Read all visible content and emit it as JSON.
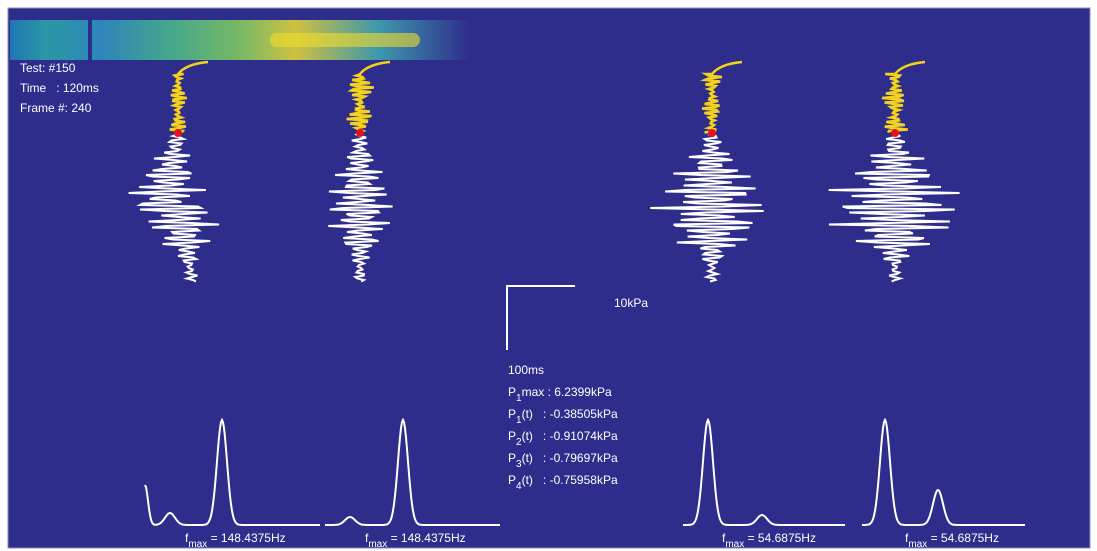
{
  "info": [
    "Test: #150",
    "Time   : 120ms",
    "Frame #: 240"
  ],
  "scale": {
    "pressure": "10kPa",
    "time": "100ms"
  },
  "readouts": [
    {
      "symbol": "P",
      "subscript": "1",
      "rest": "max : 6.2399kPa"
    },
    {
      "symbol": "P",
      "subscript": "1",
      "rest": "(t)   : -0.38505kPa"
    },
    {
      "symbol": "P",
      "subscript": "2",
      "rest": "(t)   : -0.91074kPa"
    },
    {
      "symbol": "P",
      "subscript": "3",
      "rest": "(t)   : -0.79697kPa"
    },
    {
      "symbol": "P",
      "subscript": "4",
      "rest": "(t)   : -0.75958kPa"
    }
  ],
  "frequencies": [
    {
      "symbol": "f",
      "subscript": "max",
      "rest": " = 148.4375Hz"
    },
    {
      "symbol": "f",
      "subscript": "max",
      "rest": " = 148.4375Hz"
    },
    {
      "symbol": "f",
      "subscript": "max",
      "rest": " = 54.6875Hz"
    },
    {
      "symbol": "f",
      "subscript": "max",
      "rest": " = 54.6875Hz"
    }
  ]
}
